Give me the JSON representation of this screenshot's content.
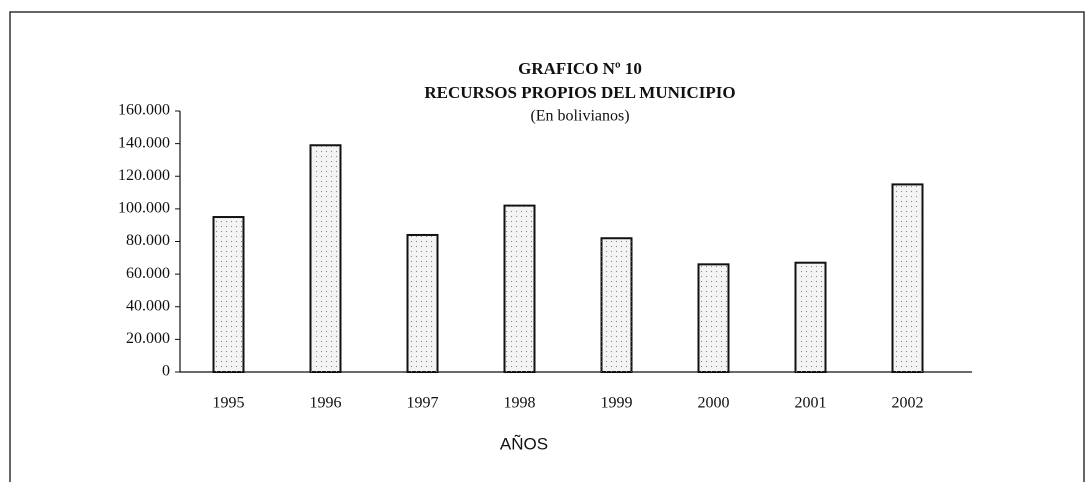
{
  "chart_data": {
    "type": "bar",
    "title": "GRAFICO Nº 10",
    "subtitle": "RECURSOS PROPIOS DEL MUNICIPIO",
    "unit_label": "(En bolivianos)",
    "x_label": "AÑOS",
    "categories": [
      "1995",
      "1996",
      "1997",
      "1998",
      "1999",
      "2000",
      "2001",
      "2002"
    ],
    "values": [
      95000,
      139000,
      84000,
      102000,
      82000,
      66000,
      67000,
      115000
    ],
    "color": "#f4f4f4",
    "ylim": [
      0,
      160000
    ],
    "yticks": [
      0,
      {
        "value": 20000,
        "label": "20.000"
      },
      {
        "value": 40000,
        "label": "40.000"
      },
      {
        "value": 60000,
        "label": "60.000"
      },
      {
        "value": 80000,
        "label": "80.000"
      },
      {
        "value": 100000,
        "label": "100.000"
      },
      {
        "value": 120000,
        "label": "120.000"
      },
      {
        "value": 140000,
        "label": "140.000"
      },
      {
        "value": 160000,
        "label": "160.000"
      }
    ],
    "grid": false
  }
}
